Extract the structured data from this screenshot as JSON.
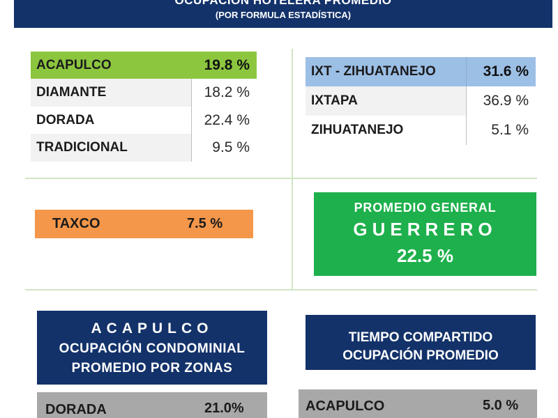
{
  "header": {
    "title": "OCUPACIÓN HOTELERA PROMEDIO",
    "subtitle": "(POR FORMULA ESTADÍSTICA)"
  },
  "acapulco_table": [
    {
      "name": "ACAPULCO",
      "value": "19.8 %"
    },
    {
      "name": "DIAMANTE",
      "value": "18.2 %"
    },
    {
      "name": "DORADA",
      "value": "22.4 %"
    },
    {
      "name": "TRADICIONAL",
      "value": "9.5 %"
    }
  ],
  "ixtapa_table": [
    {
      "name": "IXT - ZIHUATANEJO",
      "value": "31.6 %"
    },
    {
      "name": "IXTAPA",
      "value": "36.9 %"
    },
    {
      "name": "ZIHUATANEJO",
      "value": "5.1 %"
    }
  ],
  "taxco": {
    "name": "TAXCO",
    "value": "7.5 %"
  },
  "promedio_general": {
    "line1": "PROMEDIO GENERAL",
    "line2": "GUERRERO",
    "value": "22.5 %"
  },
  "condominial": {
    "line1": "ACAPULCO",
    "line2": "OCUPACIÓN CONDOMINIAL",
    "line3": "PROMEDIO POR ZONAS",
    "row": {
      "name": "DORADA",
      "value": "21.0%"
    }
  },
  "tiempo_compartido": {
    "line1": "TIEMPO COMPARTIDO",
    "line2": "OCUPACIÓN PROMEDIO",
    "row": {
      "name": "ACAPULCO",
      "value": "5.0 %"
    }
  },
  "colors": {
    "navy": "#13326a",
    "acapulco_highlight": "#8cc63f",
    "ixt_highlight": "#9cbfe6",
    "taxco_orange": "#f4974a",
    "promedio_green": "#1eb04c",
    "gray_row": "#a8a8a8"
  }
}
